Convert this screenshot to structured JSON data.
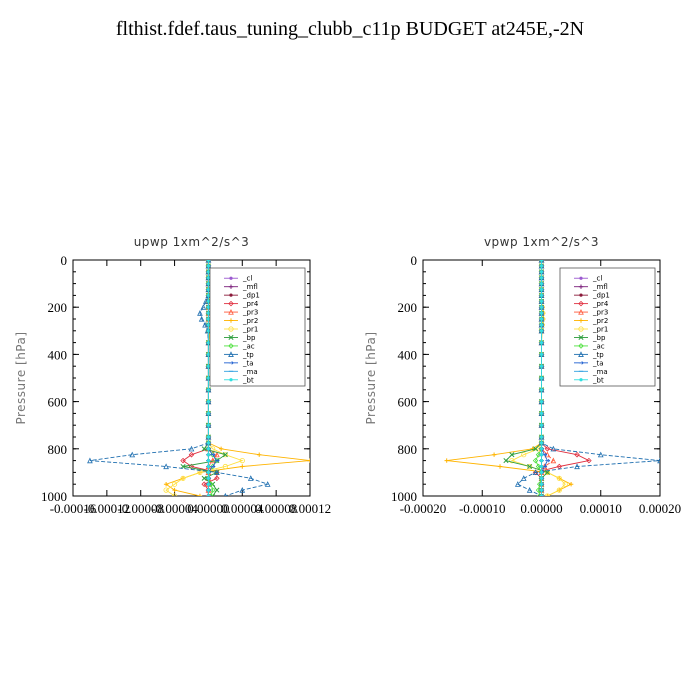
{
  "page": {
    "title": "flthist.fdef.taus_tuning_clubb_c11p  BUDGET at245E,-2N"
  },
  "chart_data": [
    {
      "type": "line",
      "title": "upwp   1xm^2/s^3",
      "xlabel": "",
      "ylabel": "Pressure [hPa]",
      "xlim": [
        -0.00016,
        0.00012
      ],
      "ylim": [
        1000,
        0
      ],
      "xticks": [
        -0.00016,
        -0.00012,
        -8e-05,
        -4e-05,
        0.0,
        4e-05,
        8e-05,
        0.00012
      ],
      "xtick_labels": [
        "-0.00016",
        "-0.00012",
        "-0.00008",
        "-0.00004",
        "0.00000",
        "0.00004",
        "0.00008",
        "0.00012"
      ],
      "yticks": [
        0,
        200,
        400,
        600,
        800,
        1000
      ],
      "ytick_labels": [
        "0",
        "200",
        "400",
        "600",
        "800",
        "1000"
      ],
      "legend_position": "top-right",
      "pressure": [
        0,
        25,
        50,
        75,
        100,
        125,
        150,
        175,
        200,
        225,
        250,
        275,
        300,
        350,
        400,
        450,
        500,
        550,
        600,
        650,
        700,
        750,
        775,
        800,
        825,
        850,
        875,
        900,
        925,
        950,
        975,
        1000
      ],
      "series": [
        {
          "name": "_cl",
          "color": "#9b59d0",
          "marker": "dot",
          "values": [
            0,
            0,
            0,
            0,
            0,
            0,
            0,
            0,
            0,
            0,
            0,
            0,
            0,
            0,
            0,
            0,
            0,
            0,
            0,
            0,
            0,
            0,
            0,
            0,
            0,
            0,
            0,
            0,
            0,
            0,
            0,
            0
          ]
        },
        {
          "name": "_mfl",
          "color": "#7b1f7b",
          "marker": "plus",
          "values": [
            0,
            0,
            0,
            0,
            0,
            0,
            0,
            0,
            0,
            0,
            0,
            0,
            0,
            0,
            0,
            0,
            0,
            0,
            0,
            0,
            0,
            0,
            0,
            0,
            0,
            0,
            0,
            0,
            0,
            0,
            0,
            0
          ]
        },
        {
          "name": "_dp1",
          "color": "#8b1a3a",
          "marker": "dot",
          "values": [
            0,
            0,
            0,
            0,
            0,
            0,
            0,
            0,
            0,
            0,
            0,
            0,
            0,
            0,
            0,
            0,
            0,
            0,
            0,
            0,
            0,
            0,
            0,
            0,
            0,
            0,
            0,
            0,
            0,
            0,
            0,
            0
          ]
        },
        {
          "name": "_pr4",
          "color": "#e03040",
          "marker": "diamond",
          "values": [
            0,
            0,
            0,
            0,
            0,
            0,
            0,
            0,
            0,
            0,
            0,
            0,
            0,
            0,
            0,
            0,
            0,
            0,
            0,
            0,
            0,
            0,
            0,
            0,
            -2e-05,
            -3e-05,
            -2e-05,
            1e-05,
            1e-05,
            -5e-06,
            0,
            0
          ]
        },
        {
          "name": "_pr3",
          "color": "#ff5a3c",
          "marker": "triangle",
          "values": [
            0,
            0,
            0,
            0,
            0,
            0,
            0,
            0,
            0,
            0,
            0,
            0,
            0,
            0,
            0,
            0,
            0,
            0,
            0,
            0,
            0,
            0,
            0,
            0,
            1e-05,
            5e-06,
            0,
            0,
            0,
            0,
            0,
            0
          ]
        },
        {
          "name": "_pr2",
          "color": "#ffb400",
          "marker": "plus",
          "values": [
            0,
            0,
            0,
            0,
            0,
            0,
            0,
            3e-06,
            6e-06,
            8e-06,
            7e-06,
            5e-06,
            2e-06,
            0,
            0,
            0,
            0,
            0,
            0,
            0,
            0,
            0,
            0,
            1.5e-05,
            6e-05,
            0.00012,
            4e-05,
            -1e-05,
            -3e-05,
            -5e-05,
            -4e-05,
            -1e-05
          ]
        },
        {
          "name": "_pr1",
          "color": "#ffe040",
          "marker": "circle",
          "values": [
            0,
            0,
            0,
            0,
            0,
            0,
            0,
            2e-06,
            4e-06,
            5e-06,
            4e-06,
            3e-06,
            1e-06,
            0,
            0,
            0,
            0,
            0,
            0,
            0,
            0,
            0,
            0,
            5e-06,
            2e-05,
            4e-05,
            2e-05,
            -1e-05,
            -3e-05,
            -4e-05,
            -5e-05,
            -4e-05
          ]
        },
        {
          "name": "_bp",
          "color": "#2e9e3e",
          "marker": "x",
          "values": [
            0,
            0,
            0,
            0,
            0,
            0,
            0,
            0,
            0,
            0,
            0,
            0,
            0,
            0,
            0,
            0,
            0,
            0,
            0,
            0,
            0,
            0,
            0,
            -5e-06,
            2e-05,
            1e-05,
            -3e-05,
            1e-05,
            -5e-06,
            5e-06,
            1e-05,
            5e-06
          ]
        },
        {
          "name": "_ac",
          "color": "#50e040",
          "marker": "diamond",
          "values": [
            0,
            0,
            0,
            0,
            0,
            0,
            0,
            0,
            0,
            0,
            0,
            0,
            0,
            0,
            0,
            0,
            0,
            0,
            0,
            0,
            0,
            0,
            0,
            0,
            5e-06,
            1e-05,
            5e-06,
            0,
            0,
            3e-06,
            5e-06,
            3e-06
          ]
        },
        {
          "name": "_tp",
          "color": "#1f6fb0",
          "marker": "triangle",
          "values": [
            0,
            0,
            0,
            0,
            0,
            0,
            0,
            -3e-06,
            -6e-06,
            -1e-05,
            -8e-06,
            -4e-06,
            -1e-06,
            0,
            0,
            0,
            0,
            0,
            0,
            0,
            0,
            0,
            0,
            -2e-05,
            -9e-05,
            -0.00014,
            -5e-05,
            1e-05,
            5e-05,
            7e-05,
            4e-05,
            2e-05
          ]
        },
        {
          "name": "_ta",
          "color": "#2060d0",
          "marker": "arrow",
          "values": [
            0,
            0,
            0,
            0,
            0,
            0,
            0,
            0,
            0,
            0,
            0,
            0,
            0,
            0,
            0,
            0,
            0,
            0,
            0,
            0,
            0,
            0,
            0,
            0,
            5e-06,
            1e-05,
            5e-06,
            0,
            0,
            0,
            0,
            0
          ]
        },
        {
          "name": "_ma",
          "color": "#30a0e0",
          "marker": "dash",
          "values": [
            0,
            0,
            0,
            0,
            0,
            0,
            0,
            0,
            0,
            0,
            0,
            0,
            0,
            0,
            0,
            0,
            0,
            0,
            0,
            0,
            0,
            0,
            0,
            0,
            0,
            0,
            0,
            0,
            0,
            0,
            0,
            0
          ]
        },
        {
          "name": "_bt",
          "color": "#30e0e0",
          "marker": "dot",
          "values": [
            0,
            0,
            0,
            0,
            0,
            0,
            0,
            0,
            0,
            0,
            0,
            0,
            0,
            0,
            0,
            0,
            0,
            0,
            0,
            0,
            0,
            0,
            0,
            0,
            0,
            0,
            0,
            0,
            0,
            0,
            0,
            0
          ]
        }
      ]
    },
    {
      "type": "line",
      "title": "vpwp   1xm^2/s^3",
      "xlabel": "",
      "ylabel": "Pressure [hPa]",
      "xlim": [
        -0.0002,
        0.0002
      ],
      "ylim": [
        1000,
        0
      ],
      "xticks": [
        -0.0002,
        -0.0001,
        0.0,
        0.0001,
        0.0002
      ],
      "xtick_labels": [
        "-0.00020",
        "-0.00010",
        "0.00000",
        "0.00010",
        "0.00020"
      ],
      "yticks": [
        0,
        200,
        400,
        600,
        800,
        1000
      ],
      "ytick_labels": [
        "0",
        "200",
        "400",
        "600",
        "800",
        "1000"
      ],
      "legend_position": "top-right",
      "pressure": [
        0,
        25,
        50,
        75,
        100,
        125,
        150,
        175,
        200,
        225,
        250,
        275,
        300,
        350,
        400,
        450,
        500,
        550,
        600,
        650,
        700,
        750,
        775,
        800,
        825,
        850,
        875,
        900,
        925,
        950,
        975,
        1000
      ],
      "series": [
        {
          "name": "_cl",
          "color": "#9b59d0",
          "marker": "dot",
          "values": [
            0,
            0,
            0,
            0,
            0,
            0,
            0,
            0,
            0,
            0,
            0,
            0,
            0,
            0,
            0,
            0,
            0,
            0,
            0,
            0,
            0,
            0,
            0,
            0,
            0,
            0,
            0,
            0,
            0,
            0,
            0,
            0
          ]
        },
        {
          "name": "_mfl",
          "color": "#7b1f7b",
          "marker": "plus",
          "values": [
            0,
            0,
            0,
            0,
            0,
            0,
            0,
            0,
            0,
            0,
            0,
            0,
            0,
            0,
            0,
            0,
            0,
            0,
            0,
            0,
            0,
            0,
            0,
            0,
            0,
            0,
            0,
            0,
            0,
            0,
            0,
            0
          ]
        },
        {
          "name": "_dp1",
          "color": "#8b1a3a",
          "marker": "dot",
          "values": [
            0,
            0,
            0,
            0,
            0,
            0,
            0,
            0,
            0,
            0,
            0,
            0,
            0,
            0,
            0,
            0,
            0,
            0,
            0,
            0,
            0,
            0,
            0,
            0,
            0,
            0,
            0,
            0,
            0,
            0,
            0,
            0
          ]
        },
        {
          "name": "_pr4",
          "color": "#e03040",
          "marker": "diamond",
          "values": [
            0,
            0,
            0,
            0,
            0,
            0,
            0,
            0,
            0,
            0,
            0,
            0,
            0,
            0,
            0,
            0,
            0,
            0,
            0,
            0,
            0,
            0,
            0,
            1e-05,
            6e-05,
            8e-05,
            3e-05,
            -1e-05,
            0,
            0,
            0,
            0
          ]
        },
        {
          "name": "_pr3",
          "color": "#ff5a3c",
          "marker": "triangle",
          "values": [
            0,
            0,
            0,
            0,
            0,
            0,
            0,
            0,
            0,
            0,
            0,
            0,
            0,
            0,
            0,
            0,
            0,
            0,
            0,
            0,
            0,
            0,
            0,
            0,
            1e-05,
            2e-05,
            5e-06,
            0,
            0,
            0,
            0,
            0
          ]
        },
        {
          "name": "_pr2",
          "color": "#ffb400",
          "marker": "plus",
          "values": [
            0,
            0,
            0,
            0,
            0,
            0,
            0,
            0,
            2e-06,
            3e-06,
            3e-06,
            2e-06,
            1e-06,
            0,
            0,
            0,
            0,
            0,
            0,
            0,
            0,
            0,
            0,
            -1.5e-05,
            -8e-05,
            -0.00016,
            -7e-05,
            1e-05,
            3e-05,
            5e-05,
            3e-05,
            1e-05
          ]
        },
        {
          "name": "_pr1",
          "color": "#ffe040",
          "marker": "circle",
          "values": [
            0,
            0,
            0,
            0,
            0,
            0,
            0,
            0,
            1e-06,
            2e-06,
            2e-06,
            1e-06,
            0,
            0,
            0,
            0,
            0,
            0,
            0,
            0,
            0,
            0,
            0,
            -5e-06,
            -3e-05,
            -5e-05,
            -2e-05,
            1e-05,
            3e-05,
            4e-05,
            3e-05,
            1e-05
          ]
        },
        {
          "name": "_bp",
          "color": "#2e9e3e",
          "marker": "x",
          "values": [
            0,
            0,
            0,
            0,
            0,
            0,
            0,
            0,
            0,
            0,
            0,
            0,
            0,
            0,
            0,
            0,
            0,
            0,
            0,
            0,
            0,
            0,
            0,
            -1e-05,
            -5e-05,
            -6e-05,
            -2e-05,
            1e-05,
            0,
            0,
            0,
            0
          ]
        },
        {
          "name": "_ac",
          "color": "#50e040",
          "marker": "diamond",
          "values": [
            0,
            0,
            0,
            0,
            0,
            0,
            0,
            0,
            0,
            0,
            0,
            0,
            0,
            0,
            0,
            0,
            0,
            0,
            0,
            0,
            0,
            0,
            0,
            0,
            -5e-06,
            -1e-05,
            -5e-06,
            0,
            0,
            -3e-06,
            -5e-06,
            -3e-06
          ]
        },
        {
          "name": "_tp",
          "color": "#1f6fb0",
          "marker": "triangle",
          "values": [
            0,
            0,
            0,
            0,
            0,
            0,
            0,
            0,
            0,
            0,
            0,
            0,
            0,
            0,
            0,
            0,
            0,
            0,
            0,
            0,
            0,
            0,
            0,
            2e-05,
            0.0001,
            0.0002,
            6e-05,
            -1e-05,
            -3e-05,
            -4e-05,
            -2e-05,
            0
          ]
        },
        {
          "name": "_ta",
          "color": "#2060d0",
          "marker": "arrow",
          "values": [
            0,
            0,
            0,
            0,
            0,
            0,
            0,
            0,
            0,
            0,
            0,
            0,
            0,
            0,
            0,
            0,
            0,
            0,
            0,
            0,
            0,
            0,
            0,
            0,
            5e-06,
            1e-05,
            5e-06,
            0,
            0,
            0,
            0,
            0
          ]
        },
        {
          "name": "_ma",
          "color": "#30a0e0",
          "marker": "dash",
          "values": [
            0,
            0,
            0,
            0,
            0,
            0,
            0,
            0,
            0,
            0,
            0,
            0,
            0,
            0,
            0,
            0,
            0,
            0,
            0,
            0,
            0,
            0,
            0,
            0,
            0,
            0,
            0,
            0,
            0,
            0,
            0,
            0
          ]
        },
        {
          "name": "_bt",
          "color": "#30e0e0",
          "marker": "dot",
          "values": [
            0,
            0,
            0,
            0,
            0,
            0,
            0,
            0,
            0,
            0,
            0,
            0,
            0,
            0,
            0,
            0,
            0,
            0,
            0,
            0,
            0,
            0,
            0,
            0,
            0,
            0,
            0,
            0,
            0,
            0,
            0,
            0
          ]
        }
      ]
    }
  ]
}
